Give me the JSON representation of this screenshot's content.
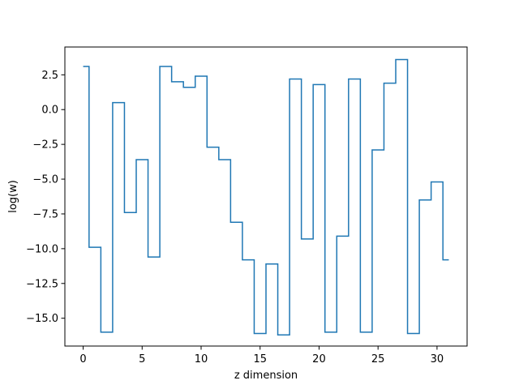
{
  "chart_data": {
    "type": "line",
    "drawstyle": "steps-mid",
    "title": "",
    "xlabel": "z dimension",
    "ylabel": "log(w)",
    "xlim": [
      -1.55,
      32.55
    ],
    "ylim": [
      -17.0,
      4.5
    ],
    "xticks": [
      0,
      5,
      10,
      15,
      20,
      25,
      30
    ],
    "xtick_labels": [
      "0",
      "5",
      "10",
      "15",
      "20",
      "25",
      "30"
    ],
    "yticks": [
      2.5,
      0.0,
      -2.5,
      -5.0,
      -7.5,
      -10.0,
      -12.5,
      -15.0
    ],
    "ytick_labels": [
      "2.5",
      "0.0",
      "−2.5",
      "−5.0",
      "−7.5",
      "−10.0",
      "−12.5",
      "−15.0"
    ],
    "grid": false,
    "series": [
      {
        "color": "#1f77b4",
        "x": [
          0,
          1,
          2,
          3,
          4,
          5,
          6,
          7,
          8,
          9,
          10,
          11,
          12,
          13,
          14,
          15,
          16,
          17,
          18,
          19,
          20,
          21,
          22,
          23,
          24,
          25,
          26,
          27,
          28,
          29,
          30,
          31
        ],
        "y": [
          3.1,
          -9.9,
          -16.0,
          0.5,
          -7.4,
          -3.6,
          -10.6,
          3.1,
          2.0,
          1.6,
          2.4,
          -2.7,
          -3.6,
          -8.1,
          -10.8,
          -16.1,
          -11.1,
          -16.2,
          2.2,
          -9.3,
          1.8,
          -16.0,
          -9.1,
          2.2,
          -16.0,
          -2.9,
          1.9,
          3.6,
          -16.1,
          -6.5,
          -5.2,
          -10.8
        ]
      }
    ]
  }
}
